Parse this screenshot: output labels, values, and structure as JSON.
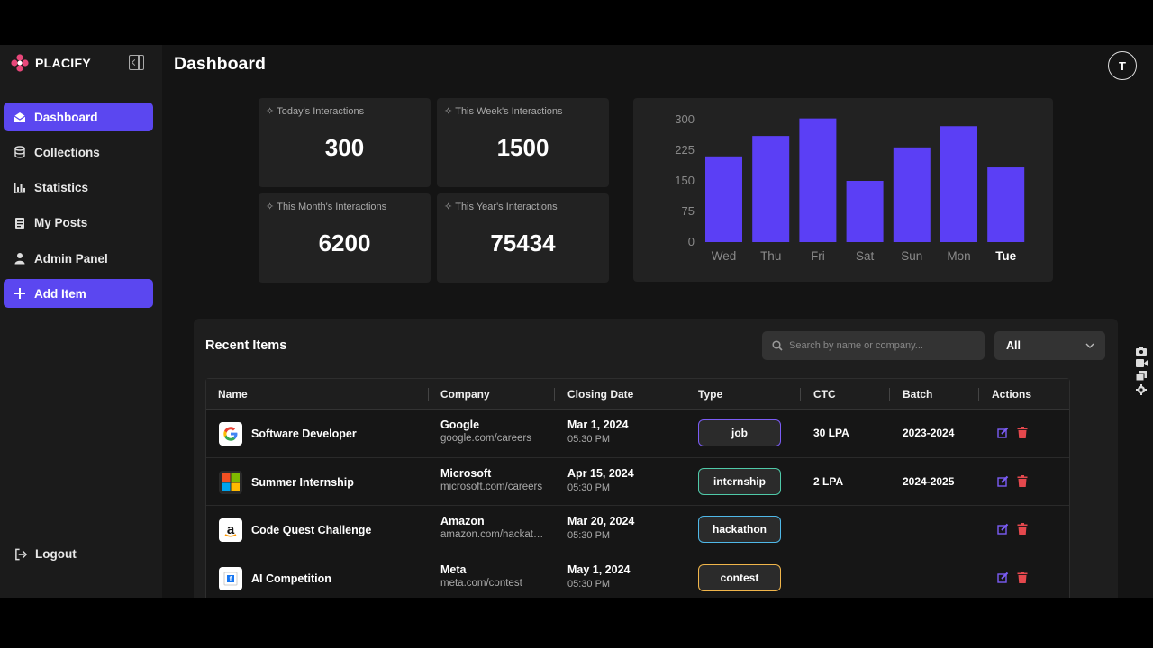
{
  "brand": {
    "name": "PLACIFY"
  },
  "sidebar": {
    "items": [
      {
        "label": "Dashboard",
        "active": true,
        "icon": "envelope-open-icon"
      },
      {
        "label": "Collections",
        "active": false,
        "icon": "database-icon"
      },
      {
        "label": "Statistics",
        "active": false,
        "icon": "bar-chart-icon"
      },
      {
        "label": "My Posts",
        "active": false,
        "icon": "document-icon"
      },
      {
        "label": "Admin Panel",
        "active": false,
        "icon": "user-icon"
      },
      {
        "label": "Add Item",
        "active": true,
        "icon": "plus-icon"
      }
    ],
    "logout_label": "Logout"
  },
  "header": {
    "title": "Dashboard",
    "avatar_initial": "T"
  },
  "stats": [
    {
      "label": "Today's Interactions",
      "value": "300"
    },
    {
      "label": "This Week's Interactions",
      "value": "1500"
    },
    {
      "label": "This Month's Interactions",
      "value": "6200"
    },
    {
      "label": "This Year's Interactions",
      "value": "75434"
    }
  ],
  "chart_data": {
    "type": "bar",
    "categories": [
      "Wed",
      "Thu",
      "Fri",
      "Sat",
      "Sun",
      "Mon",
      "Tue"
    ],
    "values": [
      210,
      260,
      303,
      150,
      232,
      284,
      183
    ],
    "yticks": [
      0,
      75,
      150,
      225,
      300
    ],
    "ylim": [
      0,
      300
    ],
    "highlighted_category": "Tue",
    "bar_color": "#5b3ff5"
  },
  "recent": {
    "title": "Recent Items",
    "search_placeholder": "Search by name or company...",
    "filter_value": "All",
    "columns": [
      "Name",
      "Company",
      "Closing Date",
      "Type",
      "CTC",
      "Batch",
      "Actions"
    ],
    "rows": [
      {
        "name": "Software Developer",
        "logo": "google-logo-icon",
        "company": "Google",
        "link": "google.com/careers",
        "date": "Mar 1, 2024",
        "time": "05:30 PM",
        "type": "job",
        "type_color": "#7b5cf5",
        "ctc": "30 LPA",
        "batch": "2023-2024"
      },
      {
        "name": "Summer Internship",
        "logo": "microsoft-logo-icon",
        "company": "Microsoft",
        "link": "microsoft.com/careers",
        "date": "Apr 15, 2024",
        "time": "05:30 PM",
        "type": "internship",
        "type_color": "#4fc9a8",
        "ctc": "2 LPA",
        "batch": "2024-2025"
      },
      {
        "name": "Code Quest Challenge",
        "logo": "amazon-logo-icon",
        "company": "Amazon",
        "link": "amazon.com/hackathon",
        "date": "Mar 20, 2024",
        "time": "05:30 PM",
        "type": "hackathon",
        "type_color": "#4fb8e8",
        "ctc": "",
        "batch": ""
      },
      {
        "name": "AI Competition",
        "logo": "meta-logo-icon",
        "company": "Meta",
        "link": "meta.com/contest",
        "date": "May 1, 2024",
        "time": "05:30 PM",
        "type": "contest",
        "type_color": "#f0b54a",
        "ctc": "",
        "batch": ""
      }
    ]
  },
  "colors": {
    "accent": "#5b47f0",
    "delete": "#e5484d",
    "edit": "#7b5cf5"
  }
}
